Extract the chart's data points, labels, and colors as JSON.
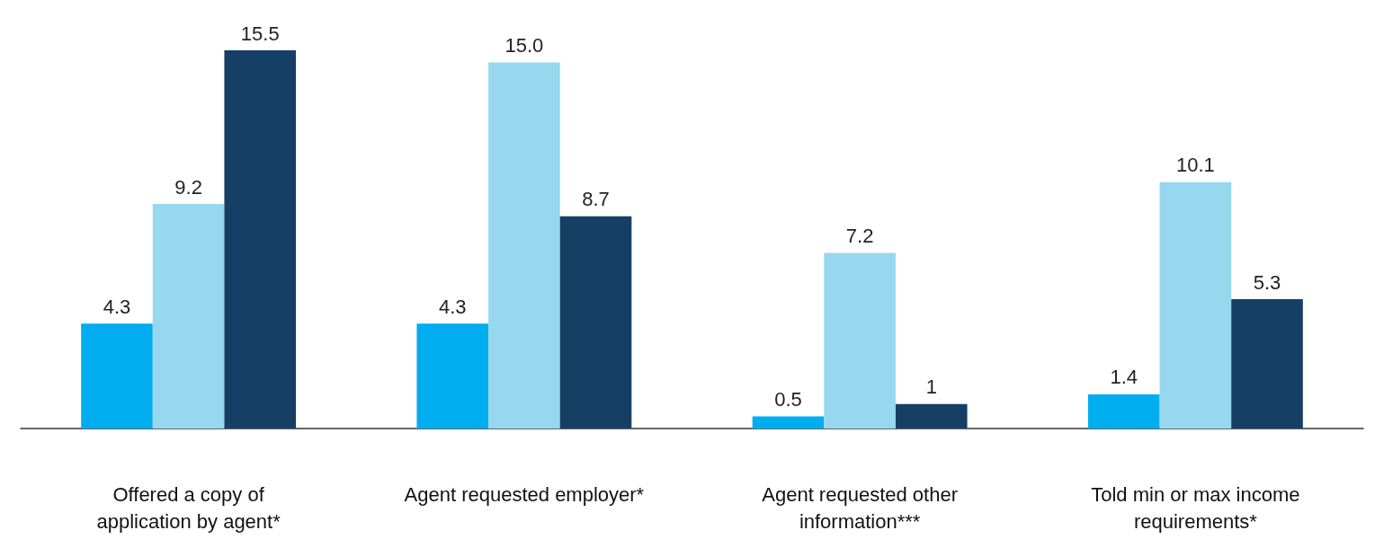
{
  "chart_data": {
    "type": "bar",
    "categories": [
      "Offered a copy of\napplication by agent*",
      "Agent requested employer*",
      "Agent requested other\ninformation***",
      "Told min or max income\nrequirements*"
    ],
    "series": [
      {
        "color": "#00adee",
        "values": [
          4.3,
          4.3,
          0.5,
          1.4
        ],
        "value_labels": [
          "4.3",
          "4.3",
          "0.5",
          "1.4"
        ]
      },
      {
        "color": "#97d8ef",
        "values": [
          9.2,
          15.0,
          7.2,
          10.1
        ],
        "value_labels": [
          "9.2",
          "15.0",
          "7.2",
          "10.1"
        ]
      },
      {
        "color": "#163f66",
        "values": [
          15.5,
          8.7,
          1,
          5.3
        ],
        "value_labels": [
          "15.5",
          "8.7",
          "1",
          "5.3"
        ]
      }
    ],
    "grid": false
  }
}
